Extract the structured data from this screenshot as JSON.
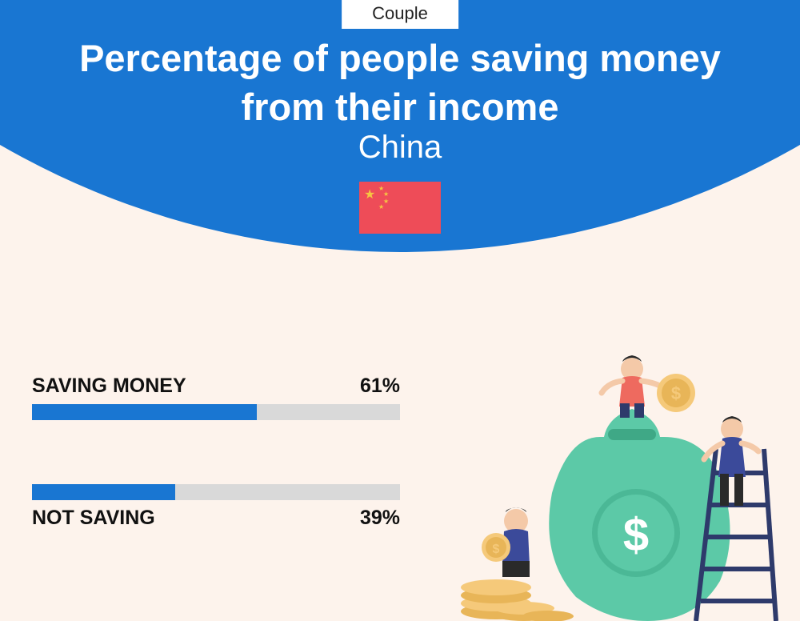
{
  "badge": "Couple",
  "title_line1": "Percentage of people saving money",
  "title_line2": "from their income",
  "subtitle": "China",
  "colors": {
    "header_bg": "#1976d2",
    "page_bg": "#fdf3ec",
    "bar_fill": "#1976d2",
    "bar_track": "#d9d9d9",
    "flag_bg": "#ee4c58",
    "flag_star": "#f5c542",
    "text_dark": "#111111",
    "text_light": "#ffffff"
  },
  "bars": [
    {
      "label": "SAVING MONEY",
      "value": 61,
      "value_text": "61%",
      "label_position": "above"
    },
    {
      "label": "NOT SAVING",
      "value": 39,
      "value_text": "39%",
      "label_position": "below"
    }
  ],
  "illustration": {
    "bag_color": "#5cc9a7",
    "bag_shadow": "#3fa886",
    "coin_color": "#f5c97a",
    "coin_inner": "#e8b558",
    "person1_shirt": "#ee6a5f",
    "person1_pants": "#2e3a6b",
    "person2_shirt": "#3b4a9a",
    "person2_pants": "#2a2a2a",
    "person3_shirt": "#3b4a9a",
    "ladder_color": "#2e3a6b",
    "skin": "#f4c9a8",
    "hair": "#2a2a2a"
  }
}
